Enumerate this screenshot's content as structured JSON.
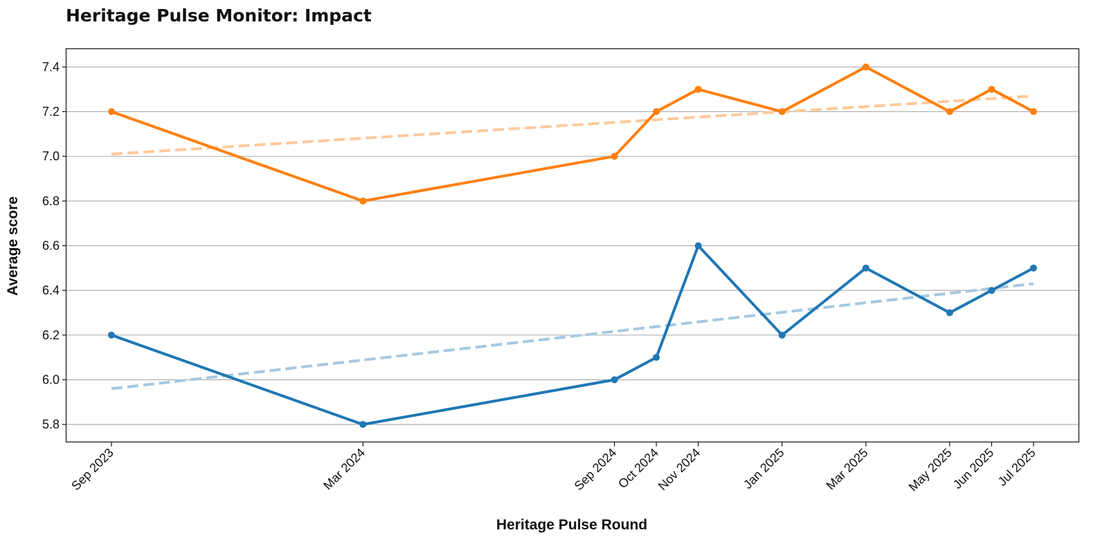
{
  "chart_data": {
    "type": "line",
    "title": "Heritage Pulse Monitor: Impact",
    "xlabel": "Heritage Pulse Round",
    "ylabel": "Average score",
    "categories": [
      "Sep 2023",
      "Mar 2024",
      "Sep 2024",
      "Oct 2024",
      "Nov 2024",
      "Jan 2025",
      "Mar 2025",
      "May 2025",
      "Jun 2025",
      "Jul 2025"
    ],
    "x": [
      "2023-09",
      "2024-03",
      "2024-09",
      "2024-10",
      "2024-11",
      "2025-01",
      "2025-03",
      "2025-05",
      "2025-06",
      "2025-07"
    ],
    "ylim": [
      5.72,
      7.48
    ],
    "yticks": [
      5.8,
      6.0,
      6.2,
      6.4,
      6.6,
      6.8,
      7.0,
      7.2,
      7.4
    ],
    "grid": "horizontal",
    "legend": "none",
    "series": [
      {
        "color": "#ff7f0e",
        "values": [
          7.2,
          6.8,
          7.0,
          7.2,
          7.3,
          7.2,
          7.4,
          7.2,
          7.3,
          7.2
        ],
        "trend": {
          "color": "#ffc999",
          "style": "dashed",
          "start": 7.01,
          "end": 7.27
        }
      },
      {
        "color": "#1f77b4",
        "values": [
          6.2,
          5.8,
          6.0,
          6.1,
          6.6,
          6.2,
          6.5,
          6.3,
          6.4,
          6.5
        ],
        "trend": {
          "color": "#a5c8e1",
          "style": "dashed",
          "start": 5.96,
          "end": 6.43
        }
      }
    ]
  }
}
